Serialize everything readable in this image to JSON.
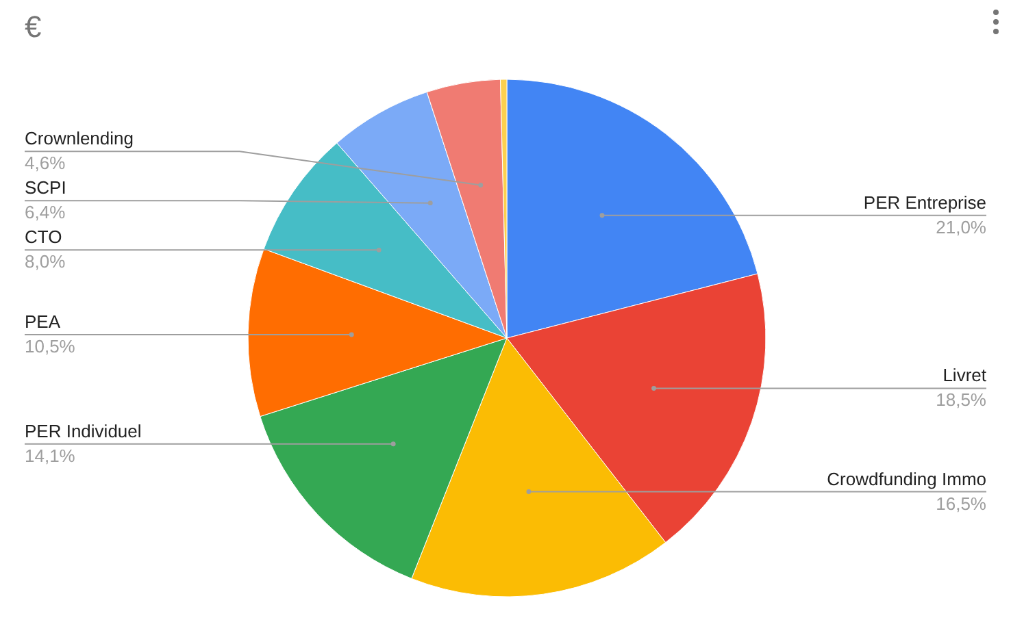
{
  "chart_data": {
    "type": "pie",
    "title": "€",
    "categories": [
      "PER Entreprise",
      "Livret",
      "Crowdfunding Immo",
      "PER Individuel",
      "PEA",
      "CTO",
      "SCPI",
      "Crownlending",
      null
    ],
    "values": [
      21.0,
      18.5,
      16.5,
      14.1,
      10.5,
      8.0,
      6.4,
      4.6,
      0.4
    ],
    "colors": [
      "#4285f4",
      "#ea4335",
      "#fbbc04",
      "#34a853",
      "#ff6d01",
      "#46bdc6",
      "#7baaf7",
      "#f07b72",
      "#fcd04f"
    ],
    "value_labels": [
      "21,0%",
      "18,5%",
      "16,5%",
      "14,1%",
      "10,5%",
      "8,0%",
      "6,4%",
      "4,6%",
      null
    ],
    "legend": false
  }
}
